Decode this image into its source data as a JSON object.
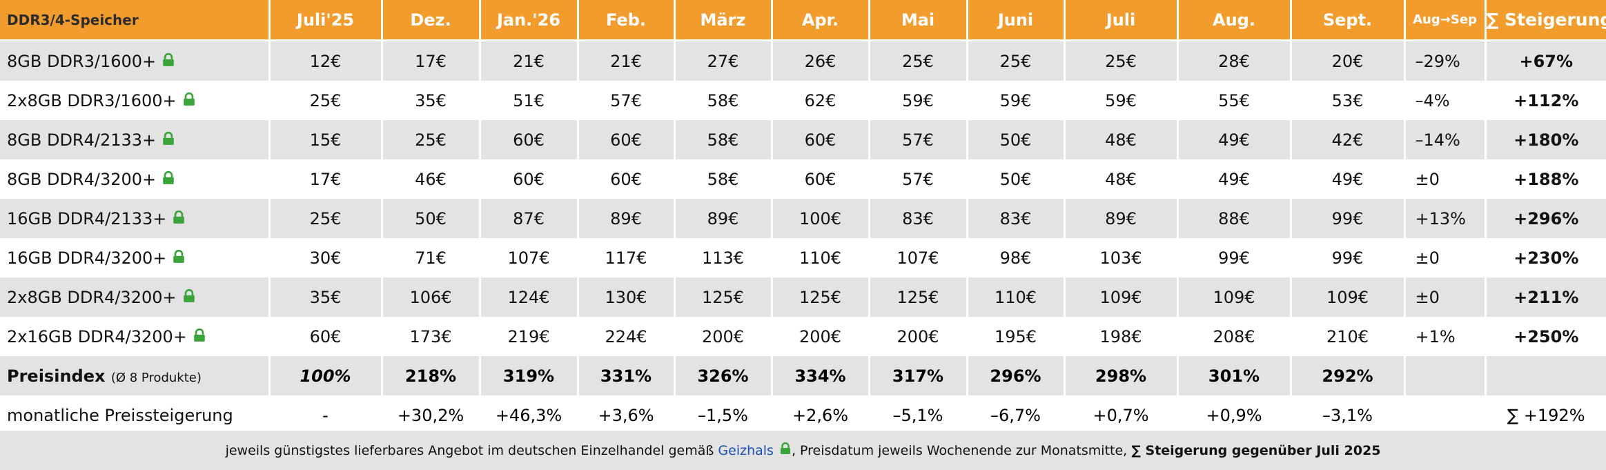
{
  "header": {
    "first": "DDR3/4-Speicher",
    "months": [
      "Juli'25",
      "Dez.",
      "Jan.'26",
      "Feb.",
      "März",
      "Apr.",
      "Mai",
      "Juni",
      "Juli",
      "Aug.",
      "Sept."
    ],
    "change": "Aug→Sep",
    "sum": "∑ Steigerung"
  },
  "rows": [
    {
      "name": "8GB DDR3/1600+",
      "values": [
        "12€",
        "17€",
        "21€",
        "21€",
        "27€",
        "26€",
        "25€",
        "25€",
        "25€",
        "28€",
        "20€"
      ],
      "change": "–29%",
      "sum": "+67%"
    },
    {
      "name": "2x8GB DDR3/1600+",
      "values": [
        "25€",
        "35€",
        "51€",
        "57€",
        "58€",
        "62€",
        "59€",
        "59€",
        "59€",
        "55€",
        "53€"
      ],
      "change": "–4%",
      "sum": "+112%"
    },
    {
      "name": "8GB DDR4/2133+",
      "values": [
        "15€",
        "25€",
        "60€",
        "60€",
        "58€",
        "60€",
        "57€",
        "50€",
        "48€",
        "49€",
        "42€"
      ],
      "change": "–14%",
      "sum": "+180%"
    },
    {
      "name": "8GB DDR4/3200+",
      "values": [
        "17€",
        "46€",
        "60€",
        "60€",
        "58€",
        "60€",
        "57€",
        "50€",
        "48€",
        "49€",
        "49€"
      ],
      "change": "±0",
      "sum": "+188%"
    },
    {
      "name": "16GB DDR4/2133+",
      "values": [
        "25€",
        "50€",
        "87€",
        "89€",
        "89€",
        "100€",
        "83€",
        "83€",
        "89€",
        "88€",
        "99€"
      ],
      "change": "+13%",
      "sum": "+296%"
    },
    {
      "name": "16GB DDR4/3200+",
      "values": [
        "30€",
        "71€",
        "107€",
        "117€",
        "113€",
        "110€",
        "107€",
        "98€",
        "103€",
        "99€",
        "99€"
      ],
      "change": "±0",
      "sum": "+230%"
    },
    {
      "name": "2x8GB DDR4/3200+",
      "values": [
        "35€",
        "106€",
        "124€",
        "130€",
        "125€",
        "125€",
        "125€",
        "110€",
        "109€",
        "109€",
        "109€"
      ],
      "change": "±0",
      "sum": "+211%"
    },
    {
      "name": "2x16GB DDR4/3200+",
      "values": [
        "60€",
        "173€",
        "219€",
        "224€",
        "200€",
        "200€",
        "200€",
        "195€",
        "198€",
        "208€",
        "210€"
      ],
      "change": "+1%",
      "sum": "+250%"
    }
  ],
  "index": {
    "label": "Preisindex",
    "sub": "(Ø 8 Produkte)",
    "values": [
      "100%",
      "218%",
      "319%",
      "331%",
      "326%",
      "334%",
      "317%",
      "296%",
      "298%",
      "301%",
      "292%"
    ]
  },
  "monthly": {
    "label": "monatliche Preissteigerung",
    "values": [
      "-",
      "+30,2%",
      "+46,3%",
      "+3,6%",
      "–1,5%",
      "+2,6%",
      "–5,1%",
      "–6,7%",
      "+0,7%",
      "+0,9%",
      "–3,1%"
    ],
    "sum": "∑ +192%"
  },
  "footer": {
    "text1": "jeweils günstigstes lieferbares Angebot im deutschen Einzelhandel gemäß",
    "link": "Geizhals",
    "text2": ", Preisdatum jeweils Wochenende zur Monatsmitte,",
    "bold": "∑ Steigerung gegenüber Juli 2025"
  },
  "colors": {
    "header": "#f29c2e",
    "stripe": "#e3e3e3",
    "link": "#1a4fbd",
    "lock": "#3aa33a"
  },
  "icons": {
    "product_lock": "lock-icon"
  }
}
